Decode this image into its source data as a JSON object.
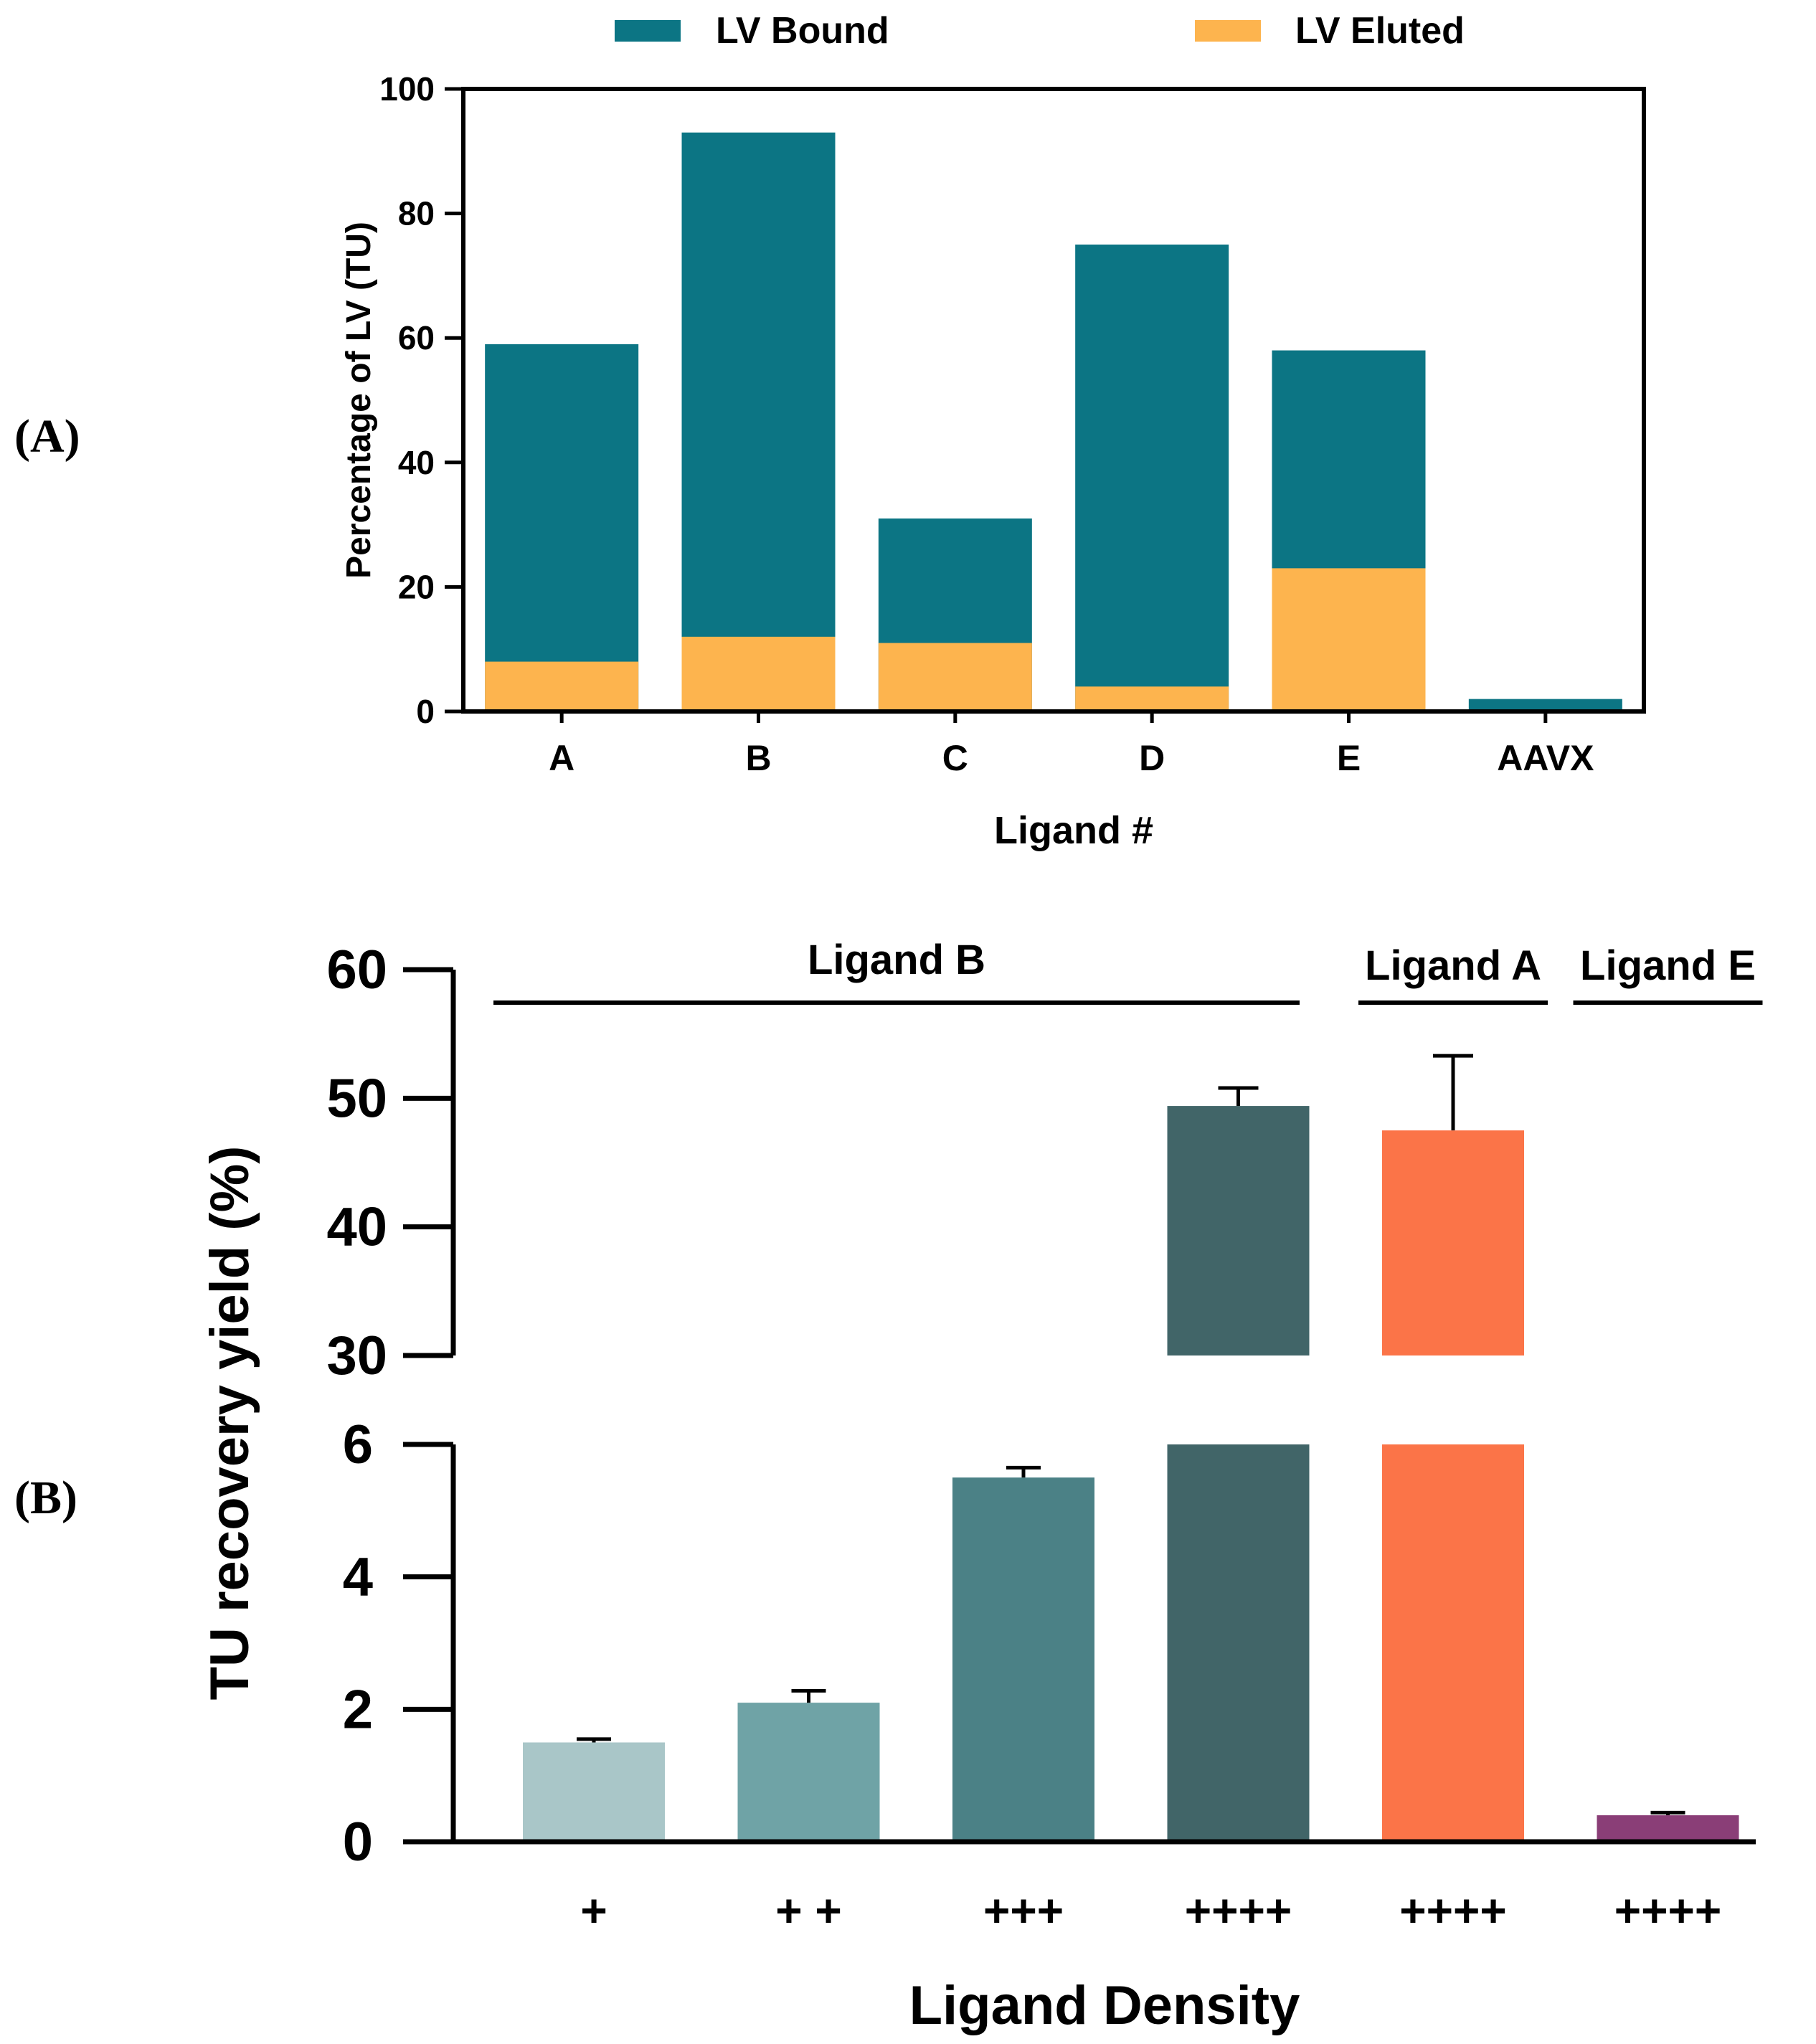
{
  "chart_data": [
    {
      "panel_label": "(A)",
      "type": "bar",
      "stacked": true,
      "categories": [
        "A",
        "B",
        "C",
        "D",
        "E",
        "AAVX"
      ],
      "series": [
        {
          "name": "LV Bound",
          "color": "#0c7584",
          "values": [
            59,
            93,
            31,
            75,
            58,
            2
          ]
        },
        {
          "name": "LV Eluted",
          "color": "#fdb44e",
          "values": [
            8,
            12,
            11,
            4,
            23,
            0
          ]
        }
      ],
      "xlabel": "Ligand #",
      "ylabel": "Percentage of LV (TU)",
      "ylim": [
        0,
        100
      ],
      "yticks": [
        0,
        20,
        40,
        60,
        80,
        100
      ],
      "legend_position": "top"
    },
    {
      "panel_label": "(B)",
      "type": "bar",
      "categories": [
        "+",
        "+ +",
        "+++",
        "++++",
        "++++",
        "++++"
      ],
      "values": [
        1.5,
        2.1,
        5.5,
        49.4,
        47.5,
        0.4
      ],
      "errors": [
        0.05,
        0.18,
        0.15,
        1.4,
        5.8,
        0.04
      ],
      "colors": [
        "#a9c6c8",
        "#6fa3a6",
        "#4b8186",
        "#416568",
        "#fb7448",
        "#8a3e77"
      ],
      "xlabel": "Ligand Density",
      "ylabel": "TU recovery yield (%)",
      "axis_break": {
        "lower_ylim": [
          0,
          6
        ],
        "upper_ylim": [
          30,
          60
        ]
      },
      "yticks_lower": [
        0,
        2,
        4,
        6
      ],
      "yticks_upper": [
        30,
        40,
        50,
        60
      ],
      "groups": [
        {
          "label": "Ligand B",
          "first": 0,
          "last": 3
        },
        {
          "label": "Ligand A",
          "first": 4,
          "last": 4
        },
        {
          "label": "Ligand E",
          "first": 5,
          "last": 5
        }
      ]
    }
  ]
}
